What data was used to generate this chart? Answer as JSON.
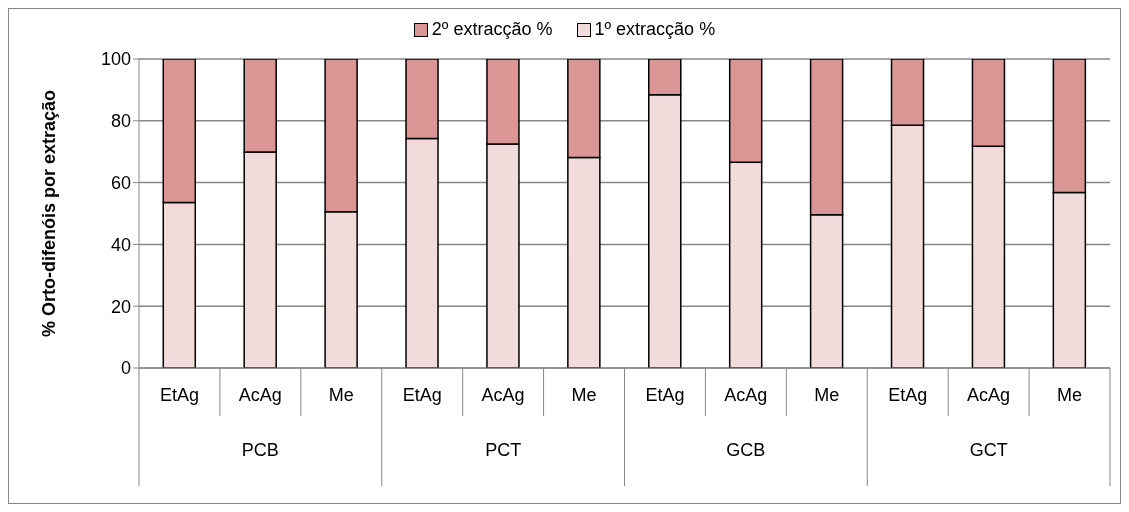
{
  "chart_data": {
    "type": "bar",
    "stacked": true,
    "ylabel": "% Orto-difenóis por extração",
    "categories": [
      "EtAg",
      "AcAg",
      "Me",
      "EtAg",
      "AcAg",
      "Me",
      "EtAg",
      "AcAg",
      "Me",
      "EtAg",
      "AcAg",
      "Me"
    ],
    "annotations": [
      "PCB",
      "PCT",
      "GCB",
      "GCT"
    ],
    "series": [
      {
        "name": "1º extracção %",
        "color": "#f2dcdb",
        "values": [
          53.6,
          69.9,
          50.6,
          74.3,
          72.5,
          68.1,
          88.4,
          66.6,
          49.6,
          78.6,
          71.8,
          56.8
        ]
      },
      {
        "name": "2º extracção %",
        "color": "#d99694",
        "values": [
          46.4,
          30.1,
          49.4,
          25.7,
          27.5,
          31.9,
          11.6,
          33.4,
          50.4,
          21.4,
          28.2,
          43.2
        ]
      }
    ],
    "ylim": [
      0,
      100
    ],
    "yticks": [
      0,
      20,
      40,
      60,
      80,
      100
    ],
    "grid": "y",
    "legend": "top"
  }
}
